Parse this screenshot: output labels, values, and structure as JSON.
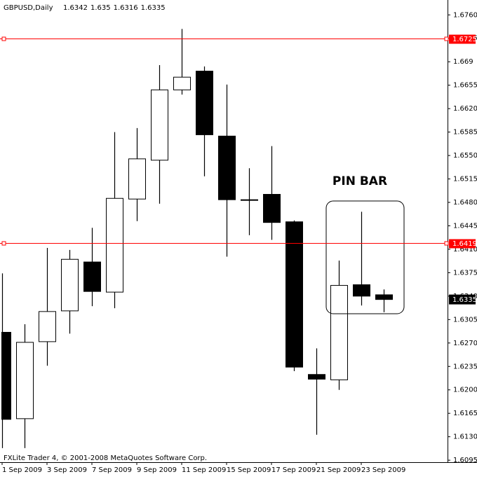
{
  "chart_data": {
    "type": "candlestick",
    "title": "GBPUSD,Daily",
    "categories": [
      "1 Sep 2009",
      null,
      "3 Sep 2009",
      null,
      "7 Sep 2009",
      null,
      "9 Sep 2009",
      null,
      "11 Sep 2009",
      null,
      "15 Sep 2009",
      null,
      "17 Sep 2009",
      null,
      "21 Sep 2009",
      null,
      "23 Sep 2009",
      null
    ],
    "open": [
      1.6286,
      1.6157,
      1.6272,
      1.6318,
      1.6391,
      1.6346,
      1.6485,
      1.6543,
      1.6648,
      1.6676,
      1.6579,
      1.6484,
      1.6492,
      1.6451,
      1.6223,
      1.6215,
      1.6357,
      1.6342
    ],
    "high": [
      1.6374,
      1.6298,
      1.6412,
      1.6409,
      1.6442,
      1.6585,
      1.6591,
      1.6685,
      1.6739,
      1.6683,
      1.6656,
      1.6531,
      1.6564,
      1.6453,
      1.6262,
      1.6393,
      1.6466,
      1.635
    ],
    "low": [
      1.6113,
      1.6113,
      1.6236,
      1.6284,
      1.6325,
      1.6322,
      1.6452,
      1.6478,
      1.6641,
      1.6519,
      1.6399,
      1.6431,
      1.6424,
      1.6228,
      1.6133,
      1.62,
      1.6326,
      1.6316
    ],
    "close": [
      1.6156,
      1.6271,
      1.6317,
      1.6395,
      1.6347,
      1.6486,
      1.6545,
      1.6648,
      1.6667,
      1.6581,
      1.6484,
      1.6484,
      1.645,
      1.6234,
      1.6216,
      1.6356,
      1.634,
      1.6335
    ],
    "up_color": "#ffffff",
    "down_color": "#000000",
    "ylim": [
      1.6777,
      1.6092
    ],
    "yticks": [
      {
        "value": 1.676,
        "label": "1.6760"
      },
      1.6725,
      1.669,
      1.6655,
      {
        "value": 1.662,
        "label": "1.6620"
      },
      1.6585,
      {
        "value": 1.655,
        "label": "1.6550"
      },
      1.6515,
      {
        "value": 1.648,
        "label": "1.6480"
      },
      1.6445,
      {
        "value": 1.641,
        "label": "1.6410"
      },
      1.6375,
      {
        "value": 1.634,
        "label": "1.6340"
      },
      1.6305,
      {
        "value": 1.627,
        "label": "1.6270"
      },
      1.6235,
      {
        "value": 1.62,
        "label": "1.6200"
      },
      1.6165,
      {
        "value": 1.613,
        "label": "1.6130"
      },
      1.6095
    ],
    "hlines": [
      1.6725,
      1.6419
    ],
    "hline_color": "#ff0000",
    "annotation": "PIN BAR",
    "footer": "FXLite Trader 4, © 2001-2008 MetaQuotes Software Corp."
  }
}
